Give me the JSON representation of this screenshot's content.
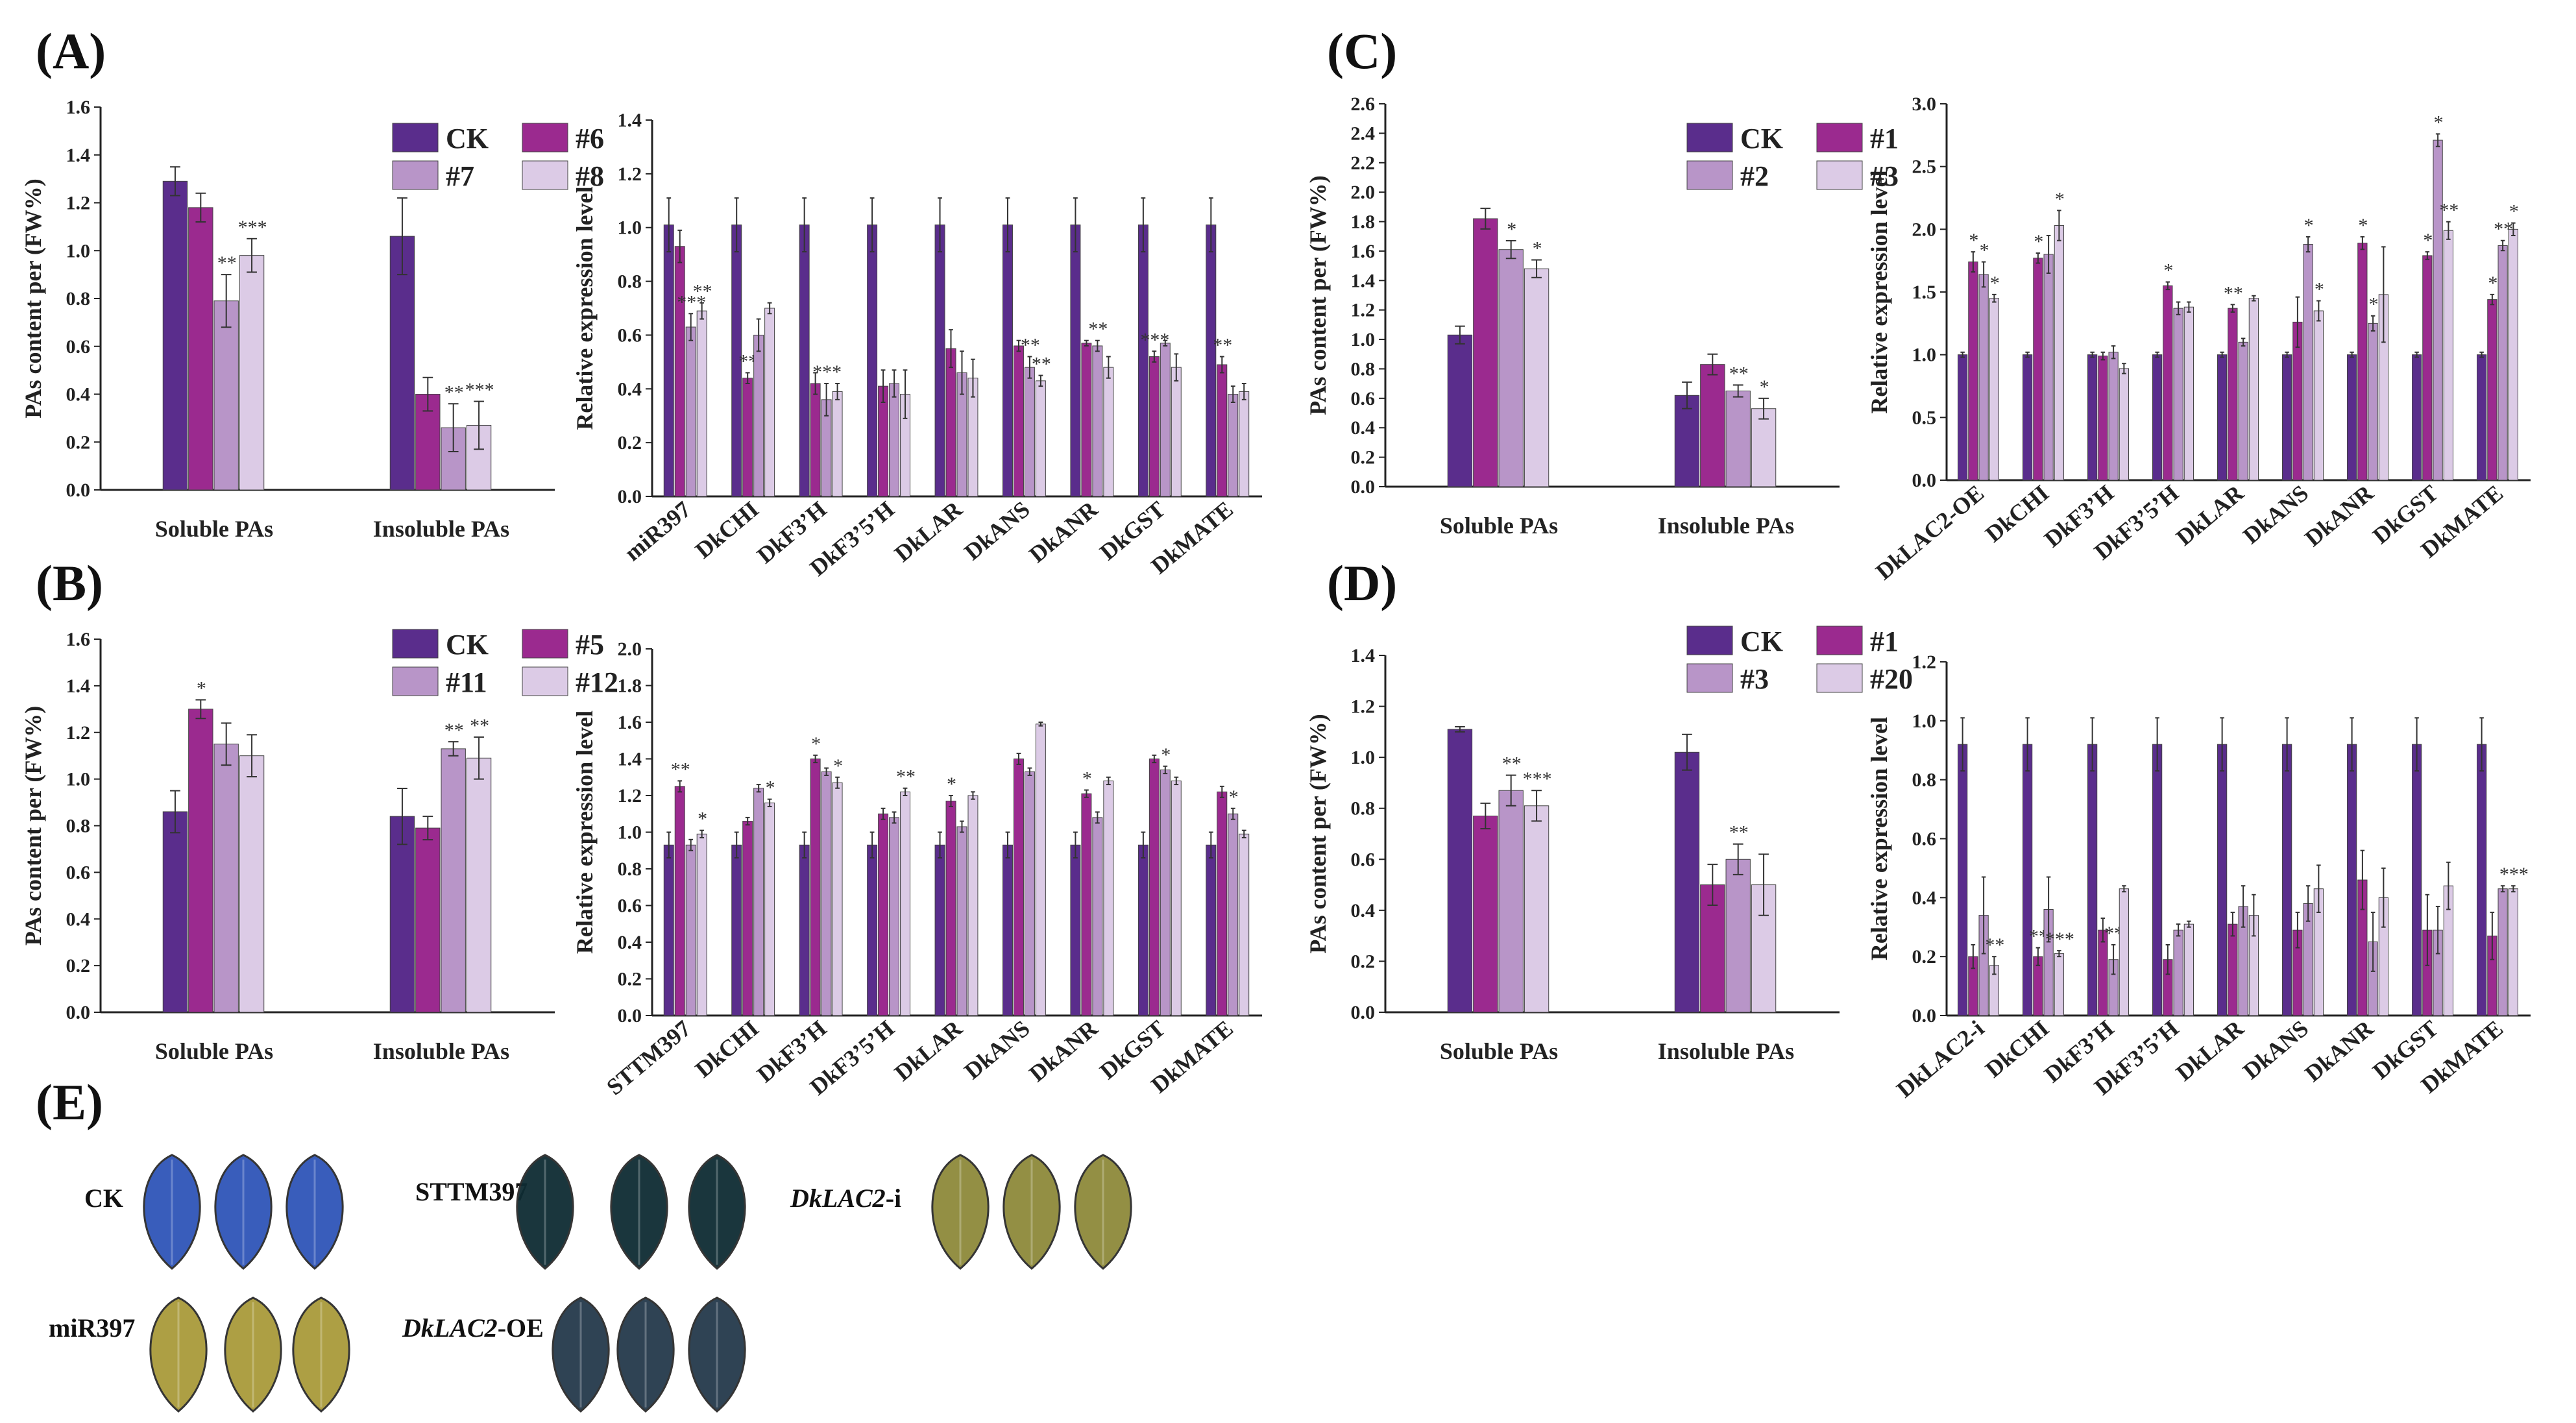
{
  "figure_labels": {
    "A": "(A)",
    "B": "(B)",
    "C": "(C)",
    "D": "(D)",
    "E": "(E)"
  },
  "colors": [
    "#5a2d8c",
    "#9b2a8f",
    "#b895c8",
    "#dccbe6"
  ],
  "chart_data": [
    {
      "id": "A1",
      "type": "bar",
      "ylabel": "PAs content per (FW%)",
      "ylim": [
        0,
        1.6
      ],
      "yticks": [
        "0.0",
        "0.2",
        "0.4",
        "0.6",
        "0.8",
        "1.0",
        "1.2",
        "1.4",
        "1.6"
      ],
      "categories": [
        "Soluble PAs",
        "Insoluble PAs"
      ],
      "series": [
        {
          "name": "CK",
          "values": [
            1.29,
            1.06
          ],
          "errors": [
            0.06,
            0.16
          ],
          "sig": [
            "",
            ""
          ]
        },
        {
          "name": "#6",
          "values": [
            1.18,
            0.4
          ],
          "errors": [
            0.06,
            0.07
          ],
          "sig": [
            "",
            ""
          ]
        },
        {
          "name": "#7",
          "values": [
            0.79,
            0.26
          ],
          "errors": [
            0.11,
            0.1
          ],
          "sig": [
            "**",
            "**"
          ]
        },
        {
          "name": "#8",
          "values": [
            0.98,
            0.27
          ],
          "errors": [
            0.07,
            0.1
          ],
          "sig": [
            "***",
            "***"
          ]
        }
      ]
    },
    {
      "id": "A2",
      "type": "bar",
      "ylabel": "Relative expression level",
      "ylim": [
        0,
        1.4
      ],
      "yticks": [
        "0.0",
        "0.2",
        "0.4",
        "0.6",
        "0.8",
        "1.0",
        "1.2",
        "1.4"
      ],
      "categories": [
        "miR397",
        "DkCHI",
        "DkF3’H",
        "DkF3’5’H",
        "DkLAR",
        "DkANS",
        "DkANR",
        "DkGST",
        "DkMATE"
      ],
      "series": [
        {
          "name": "CK",
          "values": [
            1.01,
            1.01,
            1.01,
            1.01,
            1.01,
            1.01,
            1.01,
            1.01,
            1.01
          ],
          "errors": [
            0.1,
            0.1,
            0.1,
            0.1,
            0.1,
            0.1,
            0.1,
            0.1,
            0.1
          ],
          "sig": [
            "",
            "",
            "",
            "",
            "",
            "",
            "",
            "",
            ""
          ]
        },
        {
          "name": "#6",
          "values": [
            0.93,
            0.44,
            0.42,
            0.41,
            0.55,
            0.56,
            0.57,
            0.52,
            0.49
          ],
          "errors": [
            0.06,
            0.02,
            0.04,
            0.06,
            0.07,
            0.02,
            0.01,
            0.02,
            0.03
          ],
          "sig": [
            "",
            "**",
            "",
            "",
            "",
            "",
            "",
            "***",
            "**"
          ]
        },
        {
          "name": "#7",
          "values": [
            0.63,
            0.6,
            0.36,
            0.42,
            0.46,
            0.48,
            0.56,
            0.57,
            0.38
          ],
          "errors": [
            0.05,
            0.06,
            0.06,
            0.05,
            0.08,
            0.04,
            0.02,
            0.01,
            0.03
          ],
          "sig": [
            "***",
            "",
            "***",
            "",
            "",
            "**",
            "**",
            "",
            ""
          ]
        },
        {
          "name": "#8",
          "values": [
            0.69,
            0.7,
            0.39,
            0.38,
            0.44,
            0.43,
            0.48,
            0.48,
            0.39
          ],
          "errors": [
            0.03,
            0.02,
            0.03,
            0.09,
            0.07,
            0.02,
            0.04,
            0.05,
            0.03
          ],
          "sig": [
            "**",
            "",
            "",
            "",
            "",
            "**",
            "",
            "",
            ""
          ]
        }
      ]
    },
    {
      "id": "B1",
      "type": "bar",
      "ylabel": "PAs content per (FW%)",
      "ylim": [
        0,
        1.6
      ],
      "yticks": [
        "0.0",
        "0.2",
        "0.4",
        "0.6",
        "0.8",
        "1.0",
        "1.2",
        "1.4",
        "1.6"
      ],
      "categories": [
        "Soluble PAs",
        "Insoluble PAs"
      ],
      "series": [
        {
          "name": "CK",
          "values": [
            0.86,
            0.84
          ],
          "errors": [
            0.09,
            0.12
          ],
          "sig": [
            "",
            ""
          ]
        },
        {
          "name": "#5",
          "values": [
            1.3,
            0.79
          ],
          "errors": [
            0.04,
            0.05
          ],
          "sig": [
            "*",
            ""
          ]
        },
        {
          "name": "#11",
          "values": [
            1.15,
            1.13
          ],
          "errors": [
            0.09,
            0.03
          ],
          "sig": [
            "",
            "**"
          ]
        },
        {
          "name": "#12",
          "values": [
            1.1,
            1.09
          ],
          "errors": [
            0.09,
            0.09
          ],
          "sig": [
            "",
            "**"
          ]
        }
      ]
    },
    {
      "id": "B2",
      "type": "bar",
      "ylabel": "Relative expression level",
      "ylim": [
        0,
        2.0
      ],
      "yticks": [
        "0.0",
        "0.2",
        "0.4",
        "0.6",
        "0.8",
        "1.0",
        "1.2",
        "1.4",
        "1.6",
        "1.8",
        "2.0"
      ],
      "categories": [
        "STTM397",
        "DkCHI",
        "DkF3’H",
        "DkF3’5’H",
        "DkLAR",
        "DkANS",
        "DkANR",
        "DkGST",
        "DkMATE"
      ],
      "series": [
        {
          "name": "CK",
          "values": [
            0.93,
            0.93,
            0.93,
            0.93,
            0.93,
            0.93,
            0.93,
            0.93,
            0.93
          ],
          "errors": [
            0.07,
            0.07,
            0.07,
            0.07,
            0.07,
            0.07,
            0.07,
            0.07,
            0.07
          ],
          "sig": [
            "",
            "",
            "",
            "",
            "",
            "",
            "",
            "",
            ""
          ]
        },
        {
          "name": "#5",
          "values": [
            1.25,
            1.06,
            1.4,
            1.1,
            1.17,
            1.4,
            1.21,
            1.4,
            1.22
          ],
          "errors": [
            0.03,
            0.02,
            0.02,
            0.03,
            0.03,
            0.03,
            0.02,
            0.02,
            0.03
          ],
          "sig": [
            "**",
            "",
            "*",
            "",
            "*",
            "",
            "*",
            "",
            ""
          ]
        },
        {
          "name": "#11",
          "values": [
            0.93,
            1.24,
            1.33,
            1.08,
            1.03,
            1.33,
            1.08,
            1.34,
            1.1
          ],
          "errors": [
            0.03,
            0.02,
            0.02,
            0.03,
            0.03,
            0.02,
            0.03,
            0.02,
            0.03
          ],
          "sig": [
            "",
            "",
            "",
            "",
            "",
            "",
            "",
            "*",
            "*"
          ]
        },
        {
          "name": "#12",
          "values": [
            0.99,
            1.16,
            1.27,
            1.22,
            1.2,
            1.59,
            1.28,
            1.28,
            0.99
          ],
          "errors": [
            0.02,
            0.02,
            0.03,
            0.02,
            0.02,
            0.01,
            0.02,
            0.02,
            0.02
          ],
          "sig": [
            "*",
            "*",
            "*",
            "**",
            "",
            "",
            "",
            "",
            ""
          ]
        }
      ]
    },
    {
      "id": "C1",
      "type": "bar",
      "ylabel": "PAs content per (FW%)",
      "ylim": [
        0,
        2.6
      ],
      "yticks": [
        "0.0",
        "0.2",
        "0.4",
        "0.6",
        "0.8",
        "1.0",
        "1.2",
        "1.4",
        "1.6",
        "1.8",
        "2.0",
        "2.2",
        "2.4",
        "2.6"
      ],
      "categories": [
        "Soluble PAs",
        "Insoluble PAs"
      ],
      "series": [
        {
          "name": "CK",
          "values": [
            1.03,
            0.62
          ],
          "errors": [
            0.06,
            0.09
          ],
          "sig": [
            "",
            ""
          ]
        },
        {
          "name": "#1",
          "values": [
            1.82,
            0.83
          ],
          "errors": [
            0.07,
            0.07
          ],
          "sig": [
            "",
            ""
          ]
        },
        {
          "name": "#2",
          "values": [
            1.61,
            0.65
          ],
          "errors": [
            0.06,
            0.04
          ],
          "sig": [
            "*",
            "**"
          ]
        },
        {
          "name": "#3",
          "values": [
            1.48,
            0.53
          ],
          "errors": [
            0.06,
            0.07
          ],
          "sig": [
            "*",
            "*"
          ]
        }
      ]
    },
    {
      "id": "C2",
      "type": "bar",
      "ylabel": "Relative expression level",
      "ylim": [
        0,
        3.0
      ],
      "yticks": [
        "0.0",
        "0.5",
        "1.0",
        "1.5",
        "2.0",
        "2.5",
        "3.0"
      ],
      "categories": [
        "DkLAC2-OE",
        "DkCHI",
        "DkF3’H",
        "DkF3’5’H",
        "DkLAR",
        "DkANS",
        "DkANR",
        "DkGST",
        "DkMATE"
      ],
      "series": [
        {
          "name": "CK",
          "values": [
            1.0,
            1.0,
            1.0,
            1.0,
            1.0,
            1.0,
            1.0,
            1.0,
            1.0
          ],
          "errors": [
            0.02,
            0.02,
            0.02,
            0.02,
            0.02,
            0.02,
            0.02,
            0.02,
            0.02
          ],
          "sig": [
            "",
            "",
            "",
            "",
            "",
            "",
            "",
            "",
            ""
          ]
        },
        {
          "name": "#1",
          "values": [
            1.74,
            1.77,
            0.99,
            1.55,
            1.37,
            1.26,
            1.89,
            1.79,
            1.44
          ],
          "errors": [
            0.08,
            0.04,
            0.03,
            0.03,
            0.03,
            0.2,
            0.05,
            0.03,
            0.04
          ],
          "sig": [
            "*",
            "*",
            "",
            "*",
            "**",
            "",
            "*",
            "*",
            "*"
          ]
        },
        {
          "name": "#2",
          "values": [
            1.64,
            1.8,
            1.02,
            1.37,
            1.1,
            1.88,
            1.25,
            2.71,
            1.87
          ],
          "errors": [
            0.1,
            0.15,
            0.05,
            0.05,
            0.03,
            0.06,
            0.06,
            0.05,
            0.04
          ],
          "sig": [
            "*",
            "",
            "",
            "",
            "",
            "*",
            "*",
            "*",
            "**"
          ]
        },
        {
          "name": "#3",
          "values": [
            1.45,
            2.03,
            0.89,
            1.38,
            1.45,
            1.35,
            1.48,
            1.99,
            2.0
          ],
          "errors": [
            0.03,
            0.12,
            0.04,
            0.04,
            0.02,
            0.08,
            0.38,
            0.07,
            0.05
          ],
          "sig": [
            "*",
            "*",
            "",
            "",
            "",
            "*",
            "",
            "**",
            "*"
          ]
        }
      ]
    },
    {
      "id": "D1",
      "type": "bar",
      "ylabel": "PAs content per (FW%)",
      "ylim": [
        0,
        1.4
      ],
      "yticks": [
        "0.0",
        "0.2",
        "0.4",
        "0.6",
        "0.8",
        "1.0",
        "1.2",
        "1.4"
      ],
      "categories": [
        "Soluble PAs",
        "Insoluble PAs"
      ],
      "series": [
        {
          "name": "CK",
          "values": [
            1.11,
            1.02
          ],
          "errors": [
            0.01,
            0.07
          ],
          "sig": [
            "",
            ""
          ]
        },
        {
          "name": "#1",
          "values": [
            0.77,
            0.5
          ],
          "errors": [
            0.05,
            0.08
          ],
          "sig": [
            "",
            ""
          ]
        },
        {
          "name": "#3",
          "values": [
            0.87,
            0.6
          ],
          "errors": [
            0.06,
            0.06
          ],
          "sig": [
            "**",
            "**"
          ]
        },
        {
          "name": "#20",
          "values": [
            0.81,
            0.5
          ],
          "errors": [
            0.06,
            0.12
          ],
          "sig": [
            "***",
            ""
          ]
        }
      ]
    },
    {
      "id": "D2",
      "type": "bar",
      "ylabel": "Relative expression level",
      "ylim": [
        0,
        1.2
      ],
      "yticks": [
        "0.0",
        "0.2",
        "0.4",
        "0.6",
        "0.8",
        "1.0",
        "1.2"
      ],
      "categories": [
        "DkLAC2-i",
        "DkCHI",
        "DkF3’H",
        "DkF3’5’H",
        "DkLAR",
        "DkANS",
        "DkANR",
        "DkGST",
        "DkMATE"
      ],
      "series": [
        {
          "name": "CK",
          "values": [
            0.92,
            0.92,
            0.92,
            0.92,
            0.92,
            0.92,
            0.92,
            0.92,
            0.92
          ],
          "errors": [
            0.09,
            0.09,
            0.09,
            0.09,
            0.09,
            0.09,
            0.09,
            0.09,
            0.09
          ],
          "sig": [
            "",
            "",
            "",
            "",
            "",
            "",
            "",
            "",
            ""
          ]
        },
        {
          "name": "#1",
          "values": [
            0.2,
            0.2,
            0.29,
            0.19,
            0.31,
            0.29,
            0.46,
            0.29,
            0.27
          ],
          "errors": [
            0.04,
            0.03,
            0.04,
            0.05,
            0.04,
            0.06,
            0.1,
            0.12,
            0.08
          ],
          "sig": [
            "",
            "**",
            "",
            "",
            "",
            "",
            "",
            "",
            ""
          ]
        },
        {
          "name": "#3",
          "values": [
            0.34,
            0.36,
            0.19,
            0.29,
            0.37,
            0.38,
            0.25,
            0.29,
            0.43
          ],
          "errors": [
            0.13,
            0.11,
            0.05,
            0.02,
            0.07,
            0.06,
            0.1,
            0.08,
            0.01
          ],
          "sig": [
            "",
            "",
            "**",
            "",
            "",
            "",
            "",
            "",
            ""
          ]
        },
        {
          "name": "#20",
          "values": [
            0.17,
            0.21,
            0.43,
            0.31,
            0.34,
            0.43,
            0.4,
            0.44,
            0.43
          ],
          "errors": [
            0.03,
            0.01,
            0.01,
            0.01,
            0.07,
            0.08,
            0.1,
            0.08,
            0.01
          ],
          "sig": [
            "**",
            "***",
            "",
            "",
            "",
            "",
            "",
            "",
            "***"
          ]
        }
      ]
    }
  ],
  "leaves": {
    "rows": [
      {
        "label": "CK",
        "color": "#2f55b8",
        "italic": false
      },
      {
        "label": "STTM397",
        "color": "#0e2c33",
        "italic": false
      },
      {
        "label": "DkLAC2",
        "suffix": "-i",
        "color": "#8e8a3a",
        "italic": true
      },
      {
        "label": "miR397",
        "color": "#a99a3a",
        "italic": false
      },
      {
        "label": "DkLAC2",
        "suffix": "-OE",
        "color": "#24394b",
        "italic": true
      }
    ]
  }
}
